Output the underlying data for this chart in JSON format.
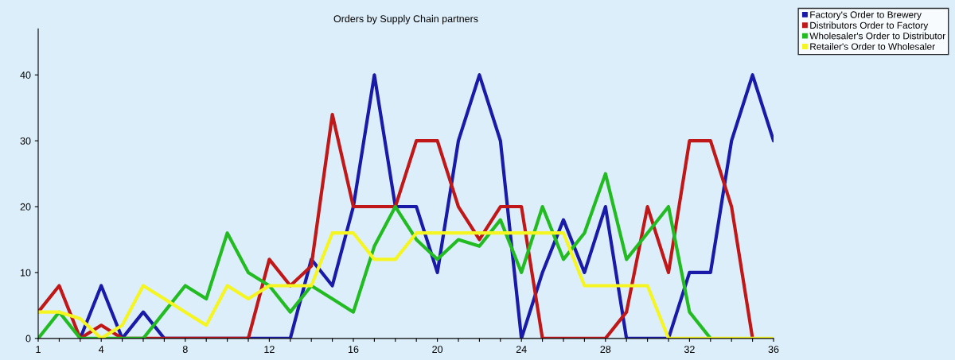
{
  "chart_data": {
    "type": "line",
    "title": "Orders by Supply Chain partners",
    "x": [
      1,
      2,
      3,
      4,
      5,
      6,
      7,
      8,
      9,
      10,
      11,
      12,
      13,
      14,
      15,
      16,
      17,
      18,
      19,
      20,
      21,
      22,
      23,
      24,
      25,
      26,
      27,
      28,
      29,
      30,
      31,
      32,
      33,
      34,
      35,
      36
    ],
    "series": [
      {
        "name": "Factory's Order to Brewery",
        "color": "#1a1aa8",
        "values": [
          null,
          null,
          0,
          8,
          0,
          4,
          0,
          0,
          0,
          0,
          0,
          0,
          0,
          12,
          8,
          20,
          40,
          20,
          20,
          10,
          30,
          40,
          30,
          0,
          10,
          18,
          10,
          20,
          0,
          0,
          0,
          10,
          10,
          30,
          40,
          30
        ]
      },
      {
        "name": "Distributors Order to Factory",
        "color": "#c01818",
        "values": [
          4,
          8,
          0,
          2,
          0,
          0,
          0,
          0,
          0,
          0,
          0,
          12,
          8,
          11,
          34,
          20,
          20,
          20,
          30,
          30,
          20,
          15,
          20,
          20,
          0,
          0,
          0,
          0,
          4,
          20,
          10,
          30,
          30,
          20,
          0,
          null
        ]
      },
      {
        "name": "Wholesaler's Order to Distributor",
        "color": "#22bb22",
        "values": [
          0,
          4,
          0,
          0,
          0,
          0,
          4,
          8,
          6,
          16,
          10,
          8,
          4,
          8,
          6,
          4,
          14,
          20,
          15,
          12,
          15,
          14,
          18,
          10,
          20,
          12,
          16,
          25,
          12,
          16,
          20,
          4,
          0,
          null,
          null,
          null
        ]
      },
      {
        "name": "Retailer's Order to Wholesaler",
        "color": "#f5f522",
        "values": [
          4,
          4,
          3,
          0,
          2,
          8,
          6,
          4,
          2,
          8,
          6,
          8,
          8,
          8,
          16,
          16,
          12,
          12,
          16,
          16,
          16,
          16,
          16,
          16,
          16,
          16,
          8,
          8,
          8,
          8,
          0,
          0,
          0,
          0,
          0,
          0
        ]
      }
    ],
    "xlim": [
      1,
      36
    ],
    "xticks": [
      1,
      {
        "value": 2,
        "label": null
      },
      {
        "value": 3,
        "label": null
      },
      4,
      {
        "value": 5,
        "label": null
      },
      {
        "value": 6,
        "label": null
      },
      {
        "value": 7,
        "label": null
      },
      8,
      {
        "value": 9,
        "label": null
      },
      {
        "value": 10,
        "label": null
      },
      {
        "value": 11,
        "label": null
      },
      12,
      {
        "value": 13,
        "label": null
      },
      {
        "value": 14,
        "label": null
      },
      {
        "value": 15,
        "label": null
      },
      16,
      {
        "value": 17,
        "label": null
      },
      {
        "value": 18,
        "label": null
      },
      {
        "value": 19,
        "label": null
      },
      20,
      {
        "value": 21,
        "label": null
      },
      {
        "value": 22,
        "label": null
      },
      {
        "value": 23,
        "label": null
      },
      24,
      {
        "value": 25,
        "label": null
      },
      {
        "value": 26,
        "label": null
      },
      {
        "value": 27,
        "label": null
      },
      28,
      {
        "value": 29,
        "label": null
      },
      {
        "value": 30,
        "label": null
      },
      {
        "value": 31,
        "label": null
      },
      32,
      {
        "value": 33,
        "label": null
      },
      {
        "value": 34,
        "label": null
      },
      {
        "value": 35,
        "label": null
      },
      36
    ],
    "ylim": [
      0,
      47
    ],
    "yticks": [
      0,
      10,
      20,
      30,
      40
    ],
    "grid": false,
    "legend": "top right",
    "marker": "none",
    "line_style": "solid"
  }
}
